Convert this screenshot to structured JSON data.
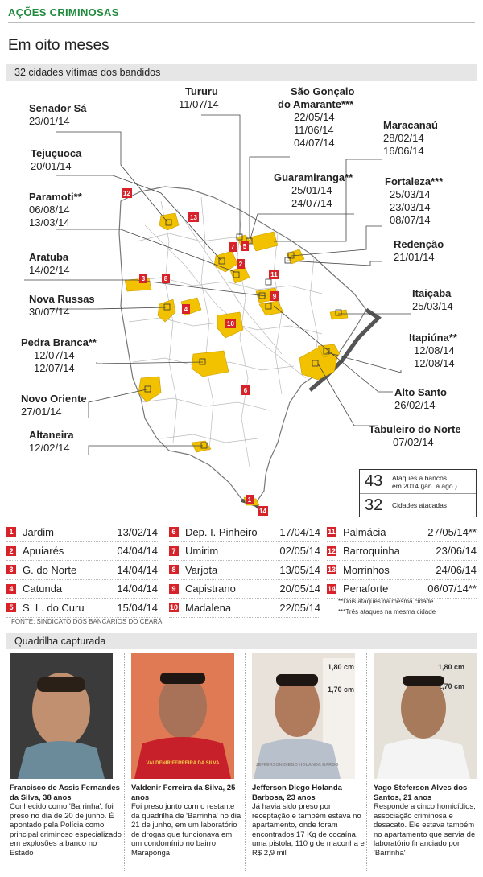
{
  "header": {
    "kicker": "AÇÕES CRIMINOSAS",
    "headline": "Em oito meses",
    "subtitle": "32 cidades vítimas dos bandidos"
  },
  "colors": {
    "kicker": "#1f8a3c",
    "highlight": "#f2c200",
    "badge": "#d8222a"
  },
  "map_labels": [
    {
      "city": "Senador Sá",
      "dates": [
        "23/01/14"
      ]
    },
    {
      "city": "Tururu",
      "dates": [
        "11/07/14"
      ]
    },
    {
      "city": "São Gonçalo",
      "dates": []
    },
    {
      "city": "do Amarante***",
      "dates": [
        "22/05/14",
        "11/06/14",
        "04/07/14"
      ]
    },
    {
      "city": "Maracanaú",
      "dates": [
        "28/02/14",
        "16/06/14"
      ]
    },
    {
      "city": "Tejuçuoca",
      "dates": [
        "20/01/14"
      ]
    },
    {
      "city": "Guaramiranga**",
      "dates": [
        "25/01/14",
        "24/07/14"
      ]
    },
    {
      "city": "Fortaleza***",
      "dates": [
        "25/03/14",
        "23/03/14",
        "08/07/14"
      ]
    },
    {
      "city": "Paramoti**",
      "dates": [
        "06/08/14",
        "13/03/14"
      ]
    },
    {
      "city": "Redenção",
      "dates": [
        "21/01/14"
      ]
    },
    {
      "city": "Aratuba",
      "dates": [
        "14/02/14"
      ]
    },
    {
      "city": "Nova Russas",
      "dates": [
        "30/07/14"
      ]
    },
    {
      "city": "Itaiçaba",
      "dates": [
        "25/03/14"
      ]
    },
    {
      "city": "Pedra Branca**",
      "dates": [
        "12/07/14",
        "12/07/14"
      ]
    },
    {
      "city": "Itapiúna**",
      "dates": [
        "12/08/14",
        "12/08/14"
      ]
    },
    {
      "city": "Novo Oriente",
      "dates": [
        "27/01/14"
      ]
    },
    {
      "city": "Alto Santo",
      "dates": [
        "26/02/14"
      ]
    },
    {
      "city": "Tabuleiro do Norte",
      "dates": [
        "07/02/14"
      ]
    },
    {
      "city": "Altaneira",
      "dates": [
        "12/02/14"
      ]
    }
  ],
  "summary": [
    {
      "number": "43",
      "text_1": "Ataques a bancos",
      "text_2": "em 2014 (jan. a ago.)"
    },
    {
      "number": "32",
      "text_1": "Cidades atacadas",
      "text_2": ""
    }
  ],
  "ranking": [
    {
      "n": "1",
      "name": "Jardim",
      "date": "13/02/14"
    },
    {
      "n": "2",
      "name": "Apuiarés",
      "date": "04/04/14"
    },
    {
      "n": "3",
      "name": "G. do Norte",
      "date": "14/04/14"
    },
    {
      "n": "4",
      "name": "Catunda",
      "date": "14/04/14"
    },
    {
      "n": "5",
      "name": "S. L. do Curu",
      "date": "15/04/14"
    },
    {
      "n": "6",
      "name": "Dep. I. Pinheiro",
      "date": "17/04/14"
    },
    {
      "n": "7",
      "name": "Umirim",
      "date": "02/05/14"
    },
    {
      "n": "8",
      "name": "Varjota",
      "date": "13/05/14"
    },
    {
      "n": "9",
      "name": "Capistrano",
      "date": "20/05/14"
    },
    {
      "n": "10",
      "name": "Madalena",
      "date": "22/05/14"
    },
    {
      "n": "11",
      "name": "Palmácia",
      "date": "27/05/14**"
    },
    {
      "n": "12",
      "name": "Barroquinha",
      "date": "23/06/14"
    },
    {
      "n": "13",
      "name": "Morrinhos",
      "date": "24/06/14"
    },
    {
      "n": "14",
      "name": "Penaforte",
      "date": "06/07/14**"
    }
  ],
  "notes": [
    "**Dois ataques na mesma cidade",
    "***Três ataques na mesma cidade"
  ],
  "source": "FONTE: SINDICATO DOS BANCÁRIOS DO CEARÁ",
  "gang": {
    "title": "Quadrilha capturada",
    "members": [
      {
        "name": "Francisco de Assis Fernandes da Silva, 38 anos",
        "text": "Conhecido como 'Barrinha', foi preso no dia de 20 de junho. É apontado pela Polícia como principal criminoso especializado em explosões a banco no Estado",
        "shirt": "",
        "bg": "#3b3b3b"
      },
      {
        "name": "Valdenir Ferreira da Silva, 25 anos",
        "text": "Foi preso junto com o restante da quadrilha de 'Barrinha' no dia 21 de junho, em um laboratório de drogas que funcionava em um condomínio no bairro Maraponga",
        "shirt": "VALDENIR FERREIRA DA SILVA",
        "bg": "#e07a54"
      },
      {
        "name": "Jefferson Diego Holanda Barbosa, 23 anos",
        "text": "Já havia sido preso por receptação e também estava no apartamento, onde foram encontrados 17 Kg de cocaína, uma pistola, 110 g de maconha e R$ 2,9 mil",
        "shirt": "JEFFERSON DIEGO HOLANDA BARBO",
        "bg": "#e8e2da",
        "ruler_1": "1,80 cm",
        "ruler_2": "1,70 cm"
      },
      {
        "name": "Yago Steferson Alves dos Santos, 21 anos",
        "text": "Responde a cinco homicídios, associação criminosa e desacato. Ele estava também no apartamento que servia de laboratório financiado por 'Barrinha'",
        "shirt": "",
        "bg": "#e5e0d8",
        "ruler_1": "1,80 cm",
        "ruler_2": "1,70 cm"
      }
    ]
  }
}
